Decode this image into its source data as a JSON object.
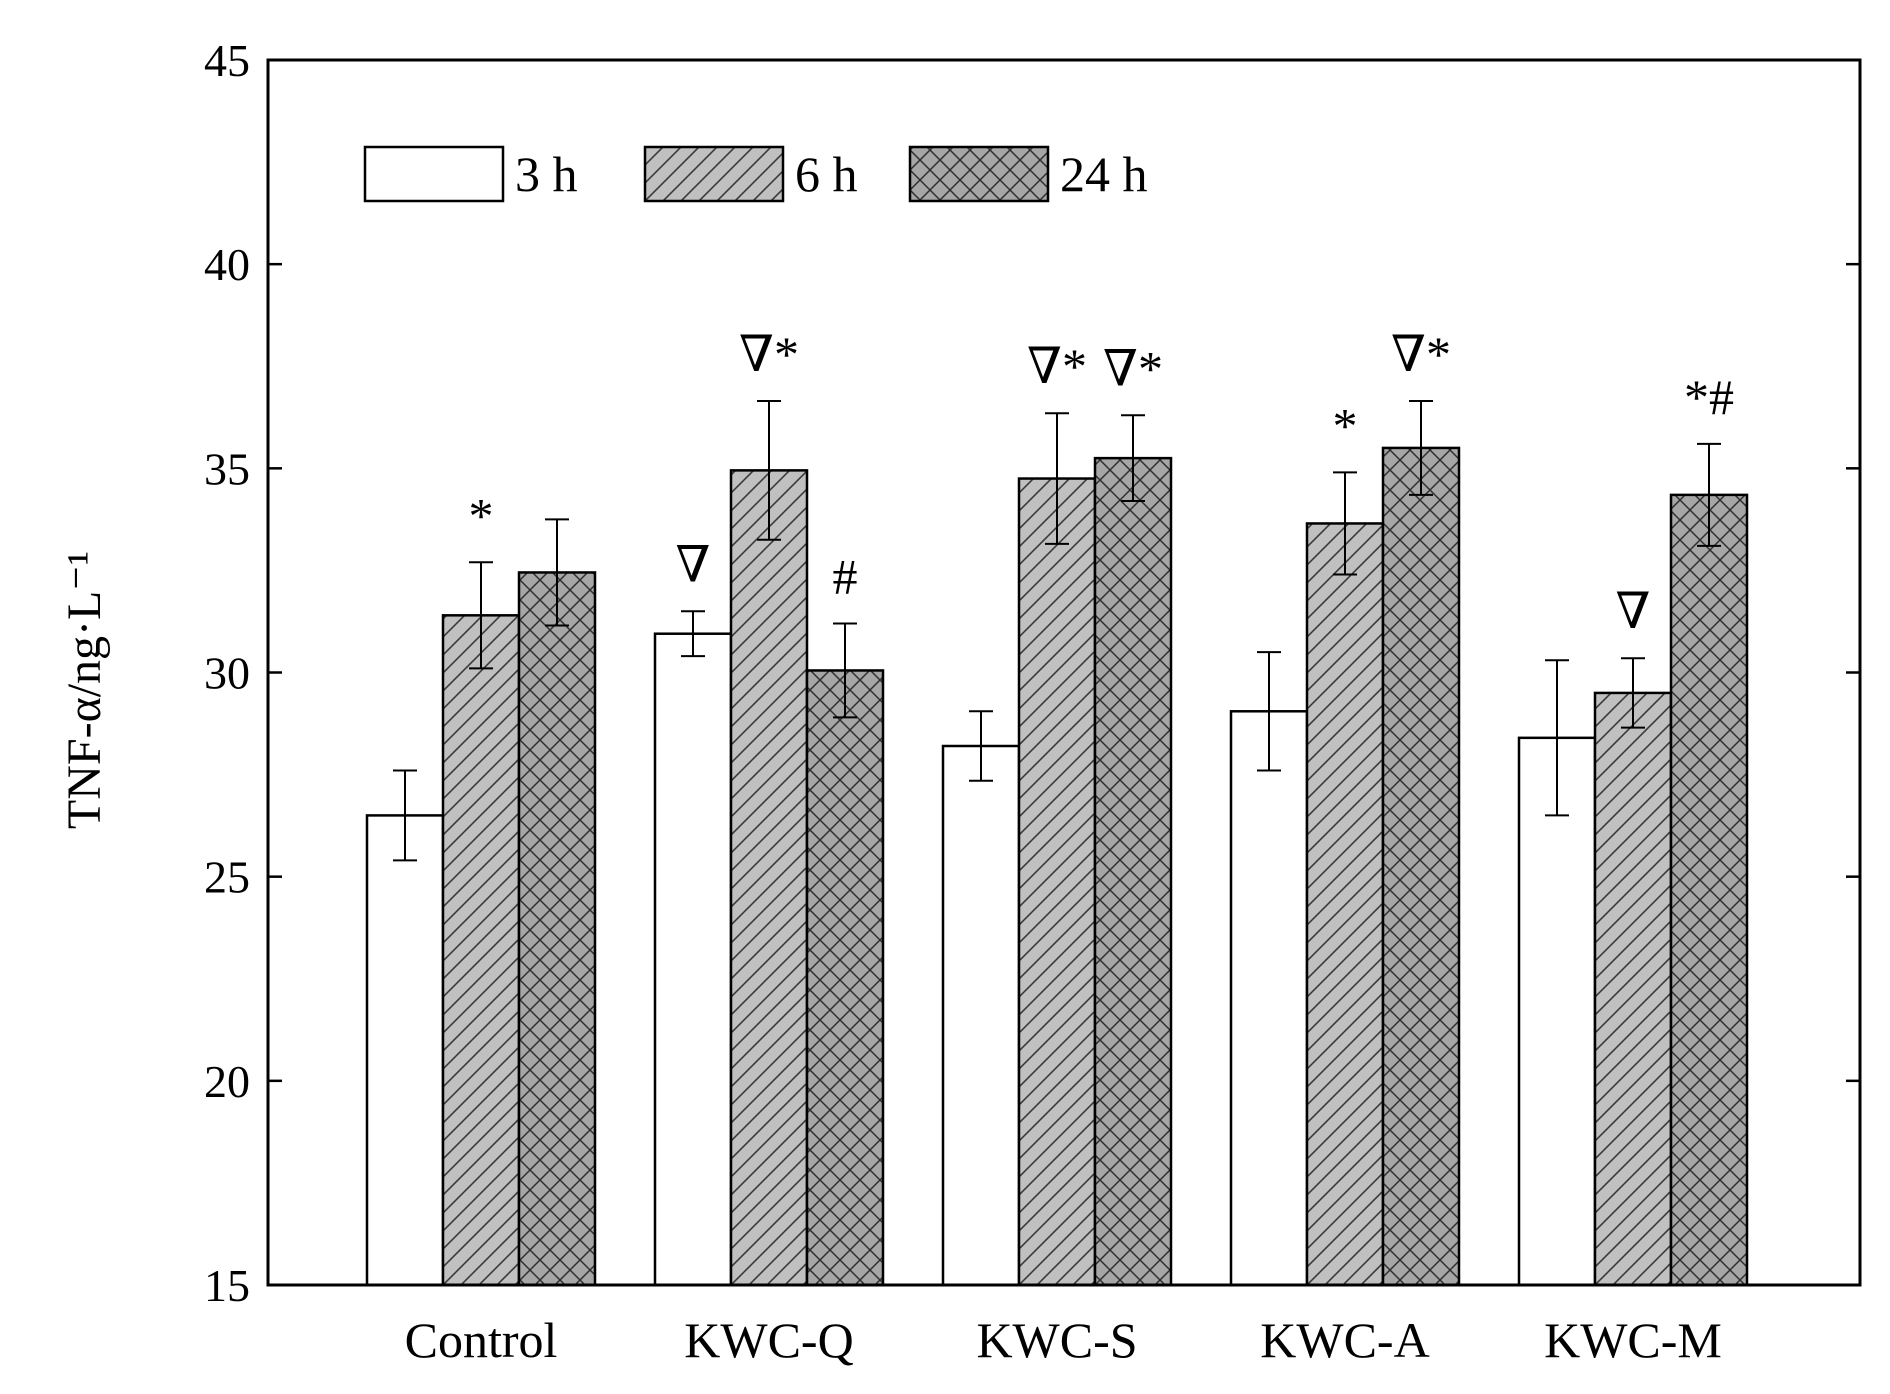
{
  "chart_data": {
    "type": "bar",
    "title": "",
    "xlabel": "",
    "ylabel": "TNF-α/ng·L⁻¹",
    "ylim": [
      15,
      45
    ],
    "yticks": [
      15,
      20,
      25,
      30,
      35,
      40,
      45
    ],
    "grid": false,
    "legend_position": "top-left",
    "categories": [
      "Control",
      "KWC-Q",
      "KWC-S",
      "KWC-A",
      "KWC-M"
    ],
    "series": [
      {
        "name": "3 h",
        "pattern": "none",
        "color": "#ffffff",
        "values": [
          26.5,
          30.95,
          28.2,
          29.05,
          28.4
        ],
        "errors": [
          1.1,
          0.55,
          0.85,
          1.45,
          1.9
        ],
        "annotations": [
          "",
          "∇",
          "",
          "",
          ""
        ]
      },
      {
        "name": "6 h",
        "pattern": "diagonal",
        "color": "#c0c0c0",
        "values": [
          31.4,
          34.95,
          34.75,
          33.65,
          29.5
        ],
        "errors": [
          1.3,
          1.7,
          1.6,
          1.25,
          0.85
        ],
        "annotations": [
          "*",
          "∇*",
          "∇*",
          "*",
          "∇"
        ]
      },
      {
        "name": "24 h",
        "pattern": "crosshatch",
        "color": "#a6a6a6",
        "values": [
          32.45,
          30.05,
          35.25,
          35.5,
          34.35
        ],
        "errors": [
          1.3,
          1.15,
          1.05,
          1.15,
          1.25
        ],
        "annotations": [
          "",
          "#",
          "∇*",
          "∇*",
          "*#"
        ]
      }
    ]
  }
}
